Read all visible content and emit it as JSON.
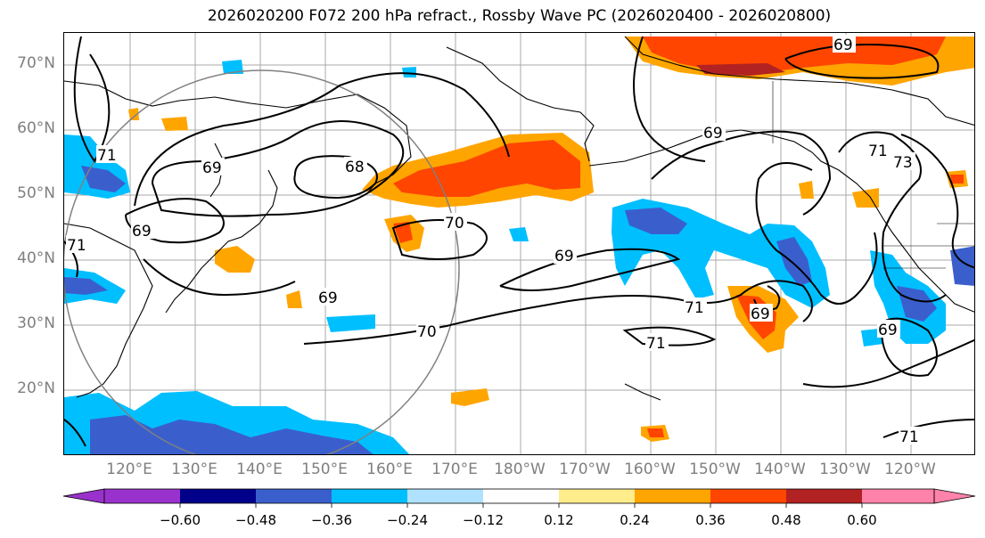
{
  "title": "2026020200 F072 200 hPa refract., Rossby Wave PC (2026020400 - 2026020800)",
  "lat_labels": [
    "70°N",
    "60°N",
    "50°N",
    "40°N",
    "30°N",
    "20°N"
  ],
  "lon_labels": [
    "120°E",
    "130°E",
    "140°E",
    "150°E",
    "160°E",
    "170°E",
    "180°W",
    "170°W",
    "160°W",
    "150°W",
    "140°W",
    "130°W",
    "120°W"
  ],
  "colorbar": {
    "colors": [
      "#9932cc",
      "#00008b",
      "#3a5fcd",
      "#00bfff",
      "#b0e2ff",
      "#ffffff",
      "#ffec8b",
      "#ffa500",
      "#ff4500",
      "#b22222",
      "#ff82ab"
    ],
    "ticks": [
      "−0.60",
      "−0.48",
      "−0.36",
      "−0.24",
      "−0.12",
      "0.12",
      "0.24",
      "0.36",
      "0.48",
      "0.60"
    ]
  },
  "contour_labels": [
    "69",
    "68",
    "70",
    "71",
    "69",
    "69",
    "69",
    "70",
    "71",
    "71",
    "69",
    "69",
    "69",
    "71",
    "73",
    "71",
    "71",
    "69"
  ]
}
